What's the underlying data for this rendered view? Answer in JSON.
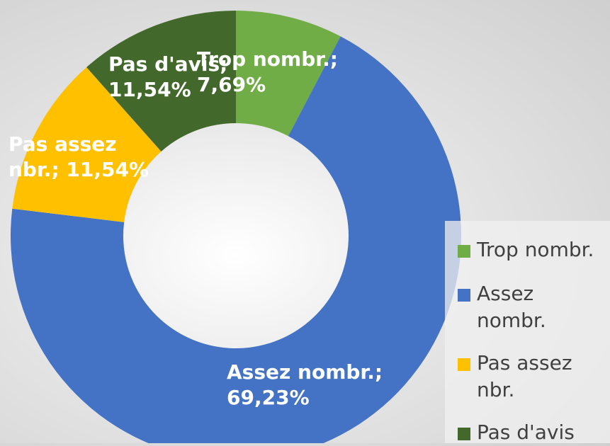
{
  "chart_data": {
    "type": "donut",
    "categories": [
      "Trop nombr.",
      "Assez nombr.",
      "Pas assez nbr.",
      "Pas d'avis"
    ],
    "values": [
      7.69,
      69.23,
      11.54,
      11.54
    ],
    "value_labels": [
      "7,69%",
      "69,23%",
      "11,54%",
      "11,54%"
    ],
    "label_separator": ";",
    "colors": [
      "#70ad47",
      "#4472c4",
      "#ffc000",
      "#43682b"
    ],
    "legend": "right"
  }
}
